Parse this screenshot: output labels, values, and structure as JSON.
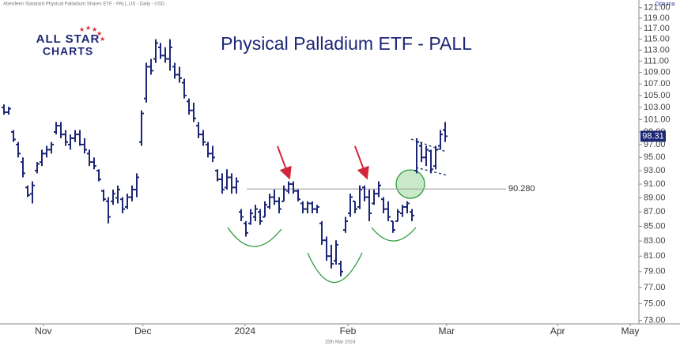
{
  "header_text": "Aberdeen Standard Physical Palladium Shares ETF - PALL.US - Daily - USD",
  "footer_text": "15th Mar 2024",
  "logo": [
    "ALL STAR",
    "CHARTS"
  ],
  "brand": "Optuma",
  "chart_data": {
    "type": "ohlc",
    "title": "Physical Palladium ETF - PALL",
    "color": "#1c2775",
    "log_scale": true,
    "categories": [
      null,
      null,
      null,
      null,
      null,
      null,
      null,
      null,
      null,
      null,
      null,
      null,
      null,
      null,
      null,
      null,
      null,
      null,
      null,
      null,
      null,
      null,
      null,
      null,
      null,
      null,
      null,
      null,
      null,
      null,
      null,
      null,
      null,
      null,
      null,
      null,
      null,
      null,
      null,
      null,
      null,
      null,
      null,
      null,
      null,
      null,
      null,
      null,
      null,
      null,
      null,
      null,
      null,
      null,
      null,
      null,
      null,
      null,
      null,
      null,
      null,
      null,
      null,
      null,
      null,
      null,
      null,
      null,
      null,
      null,
      null,
      null,
      null,
      null,
      null,
      null,
      null,
      null,
      null,
      null,
      null,
      null,
      null,
      null,
      null,
      null,
      null,
      null,
      null,
      null,
      null,
      null,
      null,
      null
    ],
    "open": [
      103.0,
      102.2,
      99.0,
      97.0,
      94.3,
      90.5,
      89.6,
      93.0,
      94.3,
      95.6,
      96.2,
      99.0,
      100.0,
      98.6,
      97.0,
      98.0,
      98.6,
      97.0,
      95.6,
      94.3,
      93.0,
      90.0,
      88.5,
      88.5,
      89.0,
      88.8,
      87.7,
      89.1,
      90.2,
      97.4,
      104.5,
      110.0,
      111.4,
      113.5,
      112.0,
      111.4,
      110.0,
      108.6,
      107.2,
      104.0,
      102.5,
      100.0,
      98.6,
      97.0,
      95.6,
      93.0,
      91.7,
      90.5,
      92.0,
      90.5,
      87.0,
      85.4,
      85.4,
      86.3,
      87.0,
      86.3,
      87.7,
      89.1,
      88.5,
      88.5,
      90.0,
      91.0,
      90.0,
      88.2,
      87.4,
      88.2,
      87.4,
      85.4,
      83.1,
      81.0,
      80.4,
      80.0,
      84.5,
      86.8,
      88.5,
      87.7,
      90.5,
      89.1,
      88.2,
      89.6,
      88.8,
      87.4,
      85.7,
      85.7,
      86.8,
      87.7,
      87.0,
      93.0,
      96.8,
      95.0,
      96.0,
      93.7,
      96.8,
      99.3
    ],
    "high": [
      103.5,
      103.1,
      99.3,
      97.4,
      95.0,
      90.8,
      91.4,
      94.3,
      96.2,
      96.8,
      97.4,
      100.6,
      100.6,
      99.3,
      98.6,
      99.3,
      99.3,
      98.0,
      96.2,
      95.0,
      93.2,
      90.2,
      89.1,
      90.2,
      90.8,
      89.1,
      89.6,
      90.8,
      92.6,
      102.5,
      110.7,
      111.4,
      115.0,
      114.3,
      113.5,
      115.0,
      110.7,
      110.0,
      107.9,
      104.5,
      103.8,
      100.6,
      99.3,
      97.4,
      96.8,
      93.2,
      92.6,
      93.2,
      92.6,
      92.0,
      87.4,
      85.7,
      87.4,
      88.0,
      87.4,
      88.5,
      89.6,
      90.2,
      89.1,
      90.8,
      91.4,
      91.4,
      90.2,
      88.5,
      88.5,
      88.5,
      88.0,
      85.7,
      83.6,
      82.5,
      83.1,
      80.4,
      86.3,
      89.6,
      88.5,
      90.8,
      90.8,
      90.2,
      90.2,
      91.4,
      89.1,
      88.5,
      85.7,
      87.4,
      88.0,
      88.5,
      87.4,
      98.0,
      97.4,
      96.8,
      96.2,
      96.8,
      99.3,
      100.6
    ],
    "low": [
      101.8,
      101.8,
      97.4,
      95.0,
      92.0,
      89.1,
      88.2,
      92.6,
      93.7,
      95.0,
      95.6,
      98.6,
      98.0,
      96.8,
      96.2,
      97.4,
      96.8,
      95.6,
      93.7,
      93.2,
      91.4,
      88.5,
      85.4,
      88.0,
      88.2,
      86.8,
      87.4,
      88.5,
      89.1,
      96.8,
      103.8,
      108.6,
      110.7,
      111.4,
      110.7,
      109.3,
      107.9,
      107.2,
      104.5,
      101.8,
      100.6,
      98.0,
      96.8,
      95.0,
      94.3,
      91.4,
      89.6,
      90.2,
      89.6,
      89.6,
      85.7,
      83.6,
      85.2,
      85.7,
      85.2,
      86.3,
      87.4,
      88.0,
      86.8,
      88.5,
      89.6,
      89.6,
      88.5,
      86.8,
      86.8,
      86.8,
      86.8,
      82.5,
      80.4,
      79.4,
      79.9,
      78.4,
      84.1,
      86.3,
      86.8,
      87.4,
      88.5,
      85.7,
      88.0,
      89.1,
      86.8,
      85.7,
      84.1,
      85.7,
      86.3,
      86.8,
      85.7,
      92.6,
      94.3,
      93.7,
      92.6,
      93.2,
      96.2,
      97.4
    ],
    "close": [
      102.2,
      102.8,
      97.8,
      95.6,
      92.6,
      89.4,
      90.8,
      94.0,
      95.6,
      96.2,
      97.0,
      100.0,
      98.6,
      97.4,
      98.0,
      98.6,
      97.0,
      96.2,
      94.3,
      93.7,
      91.7,
      88.8,
      86.3,
      89.6,
      90.2,
      87.4,
      89.1,
      90.2,
      92.0,
      102.0,
      110.0,
      109.3,
      114.3,
      112.0,
      111.4,
      113.5,
      108.6,
      108.0,
      105.0,
      102.5,
      101.2,
      98.6,
      97.4,
      95.6,
      95.0,
      91.7,
      90.2,
      92.0,
      90.5,
      91.4,
      86.3,
      84.1,
      86.8,
      87.4,
      85.7,
      88.0,
      89.1,
      88.5,
      87.4,
      90.2,
      91.0,
      90.0,
      88.8,
      87.4,
      88.2,
      87.4,
      87.7,
      83.1,
      81.0,
      80.0,
      82.5,
      79.0,
      85.7,
      89.1,
      87.4,
      90.2,
      89.1,
      86.8,
      89.6,
      90.8,
      87.4,
      86.3,
      84.5,
      87.0,
      87.7,
      88.2,
      86.5,
      97.4,
      95.0,
      96.2,
      93.2,
      96.2,
      98.6,
      98.31
    ],
    "reference_line": {
      "value": 90.28,
      "label": "90.280"
    },
    "xlim": [
      -0.5,
      133.5
    ],
    "xticks": [
      {
        "value": 8.3,
        "label": "Nov"
      },
      {
        "value": 29.3,
        "label": "Dec"
      },
      {
        "value": 50.8,
        "label": "2024"
      },
      {
        "value": 72.5,
        "label": "Feb"
      },
      {
        "value": 93.3,
        "label": "Mar"
      },
      {
        "value": 116.7,
        "label": "Apr"
      },
      {
        "value": 132,
        "label": "May"
      }
    ],
    "ylim": [
      72.6,
      121.9
    ],
    "yticks": [
      {
        "value": 73,
        "label": "73.00"
      },
      {
        "value": 75,
        "label": "75.00"
      },
      {
        "value": 77,
        "label": "77.00"
      },
      {
        "value": 79,
        "label": "79.00"
      },
      {
        "value": 81,
        "label": "81.00"
      },
      {
        "value": 83,
        "label": "83.00"
      },
      {
        "value": 85,
        "label": "85.00"
      },
      {
        "value": 87,
        "label": "87.00"
      },
      {
        "value": 89,
        "label": "89.00"
      },
      {
        "value": 91,
        "label": "91.00"
      },
      {
        "value": 93,
        "label": "93.00"
      },
      {
        "value": 95,
        "label": "95.00"
      },
      {
        "value": 97,
        "label": "97.00"
      },
      {
        "value": 99,
        "label": "99.00"
      },
      {
        "value": 101,
        "label": "101.00"
      },
      {
        "value": 103,
        "label": "103.00"
      },
      {
        "value": 105,
        "label": "105.00"
      },
      {
        "value": 107,
        "label": "107.00"
      },
      {
        "value": 109,
        "label": "109.00"
      },
      {
        "value": 111,
        "label": "111.00"
      },
      {
        "value": 113,
        "label": "113.00"
      },
      {
        "value": 115,
        "label": "115.00"
      },
      {
        "value": 117,
        "label": "117.00"
      },
      {
        "value": 119,
        "label": "119.00"
      },
      {
        "value": 121,
        "label": "121.00"
      }
    ]
  }
}
